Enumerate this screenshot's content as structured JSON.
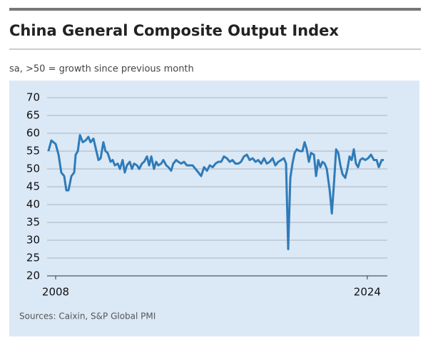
{
  "chart_data": {
    "type": "line",
    "title": "China General Composite Output Index",
    "subtitle": "sa, >50 = growth since previous month",
    "source": "Sources: Caixin, S&P Global PMI",
    "x": [
      2007.63,
      2007.78,
      2008.0,
      2008.15,
      2008.29,
      2008.44,
      2008.55,
      2008.66,
      2008.81,
      2008.95,
      2009.03,
      2009.14,
      2009.25,
      2009.39,
      2009.54,
      2009.68,
      2009.79,
      2009.94,
      2010.09,
      2010.2,
      2010.31,
      2010.45,
      2010.56,
      2010.67,
      2010.82,
      2010.93,
      2011.04,
      2011.19,
      2011.3,
      2011.44,
      2011.55,
      2011.66,
      2011.81,
      2011.92,
      2012.03,
      2012.18,
      2012.29,
      2012.43,
      2012.54,
      2012.69,
      2012.8,
      2012.91,
      2013.05,
      2013.16,
      2013.27,
      2013.42,
      2013.53,
      2013.68,
      2013.79,
      2013.93,
      2014.04,
      2014.19,
      2014.3,
      2014.45,
      2014.59,
      2014.74,
      2014.89,
      2015.03,
      2015.18,
      2015.33,
      2015.47,
      2015.62,
      2015.77,
      2015.91,
      2016.06,
      2016.21,
      2016.35,
      2016.5,
      2016.64,
      2016.79,
      2016.94,
      2017.08,
      2017.23,
      2017.38,
      2017.52,
      2017.67,
      2017.82,
      2017.96,
      2018.11,
      2018.26,
      2018.4,
      2018.55,
      2018.7,
      2018.84,
      2018.99,
      2019.14,
      2019.28,
      2019.43,
      2019.58,
      2019.72,
      2019.83,
      2019.94,
      2020.05,
      2020.16,
      2020.27,
      2020.38,
      2020.53,
      2020.67,
      2020.78,
      2020.89,
      2021.0,
      2021.11,
      2021.26,
      2021.37,
      2021.48,
      2021.59,
      2021.7,
      2021.81,
      2021.92,
      2022.07,
      2022.18,
      2022.29,
      2022.4,
      2022.51,
      2022.62,
      2022.73,
      2022.87,
      2022.98,
      2023.09,
      2023.2,
      2023.31,
      2023.42,
      2023.53,
      2023.64,
      2023.75,
      2023.9,
      2024.04,
      2024.19,
      2024.34,
      2024.48,
      2024.59,
      2024.74,
      2024.85
    ],
    "series": [
      {
        "name": "China General Composite Output Index",
        "color": "#2f7bb8",
        "values": [
          55,
          58,
          57,
          54,
          49,
          48,
          44,
          44,
          48,
          49,
          54,
          55,
          59.5,
          57.5,
          58,
          59,
          57.5,
          58.5,
          55,
          52.5,
          53,
          57.5,
          55,
          54.5,
          52,
          52.5,
          51,
          51.5,
          50,
          52.5,
          49,
          51,
          52,
          50,
          51.5,
          51,
          50,
          51.5,
          52,
          53.5,
          51,
          53.5,
          50,
          52,
          51,
          51.5,
          52.5,
          51,
          50.5,
          49.5,
          51.5,
          52.5,
          52,
          51.5,
          52,
          51,
          51,
          51,
          50,
          49,
          48,
          50.5,
          49.5,
          51,
          50.5,
          51.5,
          52,
          52,
          53.5,
          53,
          52,
          52.5,
          51.5,
          51.5,
          52,
          53.5,
          54,
          52.5,
          53,
          52,
          52.5,
          51.5,
          53,
          51.5,
          52,
          53,
          51,
          52,
          52.5,
          53,
          51.5,
          27.5,
          47.5,
          51.5,
          54.5,
          55.5,
          55,
          55,
          57.5,
          55.5,
          52,
          54.5,
          54,
          48,
          52.5,
          50.5,
          52,
          51.5,
          50,
          44,
          37.5,
          46,
          55.5,
          54.5,
          51,
          48.5,
          47.5,
          50,
          53.5,
          52.5,
          55.5,
          51.5,
          50.5,
          52.5,
          53,
          52.5,
          53,
          54,
          52.5,
          52.5,
          50.5,
          52.5,
          52.5
        ]
      }
    ],
    "xlim": [
      2007.56,
      2025.03
    ],
    "xticks": [
      2008,
      2024
    ],
    "ylim": [
      20,
      70
    ],
    "yticks": [
      20,
      25,
      30,
      35,
      40,
      45,
      50,
      55,
      60,
      65,
      70
    ],
    "grid": true
  }
}
